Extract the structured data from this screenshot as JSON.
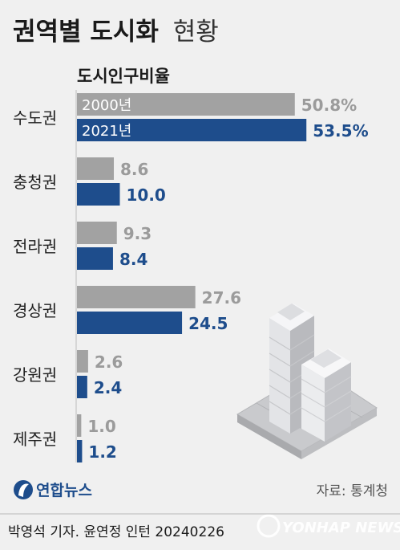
{
  "title": "권역별 도시화",
  "title_suffix": "현황",
  "source": "자료: 통계청",
  "logo_text": "연합뉴스",
  "credit": "박영석 기자. 윤연정 인턴  20240226",
  "watermark": "YONHAP NEWS",
  "colors": {
    "series_2000": "#a2a2a2",
    "series_2021": "#1e4d8c",
    "background": "#f0f0f0"
  },
  "chart_data": {
    "type": "bar",
    "orientation": "horizontal",
    "subtitle": "도시인구비율",
    "categories": [
      "수도권",
      "충청권",
      "전라권",
      "경상권",
      "강원권",
      "제주권"
    ],
    "series": [
      {
        "name": "2000년",
        "values": [
          50.8,
          8.6,
          9.3,
          27.6,
          2.6,
          1.0
        ],
        "labels": [
          "50.8%",
          "8.6",
          "9.3",
          "27.6",
          "2.6",
          "1.0"
        ]
      },
      {
        "name": "2021년",
        "values": [
          53.5,
          10.0,
          8.4,
          24.5,
          2.4,
          1.2
        ],
        "labels": [
          "53.5%",
          "10.0",
          "8.4",
          "24.5",
          "2.4",
          "1.2"
        ]
      }
    ],
    "unit": "%",
    "xlim": [
      0,
      55
    ],
    "grid": false,
    "legend": "inside-first-bars"
  }
}
